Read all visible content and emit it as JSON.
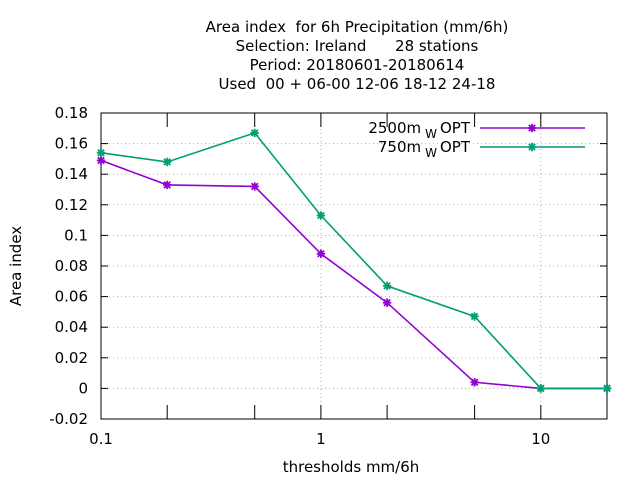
{
  "chart_data": {
    "type": "line",
    "title_lines": [
      "Area index  for 6h Precipitation (mm/6h)",
      "Selection: Ireland      28 stations",
      "Period: 20180601-20180614",
      "Used  00 + 06-00 12-06 18-12 24-18"
    ],
    "xlabel": "thresholds mm/6h",
    "ylabel": "Area index",
    "xscale": "log",
    "xlim": [
      0.1,
      20
    ],
    "ylim": [
      -0.02,
      0.18
    ],
    "xticks": [
      {
        "value": 0.1,
        "label": "0.1"
      },
      {
        "value": 1,
        "label": "1"
      },
      {
        "value": 10,
        "label": "10"
      }
    ],
    "x_minor_ticks": [
      0.2,
      0.5,
      2,
      5,
      20
    ],
    "yticks": [
      {
        "value": -0.02,
        "label": "-0.02"
      },
      {
        "value": 0,
        "label": "0"
      },
      {
        "value": 0.02,
        "label": "0.02"
      },
      {
        "value": 0.04,
        "label": "0.04"
      },
      {
        "value": 0.06,
        "label": "0.06"
      },
      {
        "value": 0.08,
        "label": "0.08"
      },
      {
        "value": 0.1,
        "label": "0.1"
      },
      {
        "value": 0.12,
        "label": "0.12"
      },
      {
        "value": 0.14,
        "label": "0.14"
      },
      {
        "value": 0.16,
        "label": "0.16"
      },
      {
        "value": 0.18,
        "label": "0.18"
      }
    ],
    "grid": true,
    "legend_position": "top-right",
    "x": [
      0.1,
      0.2,
      0.5,
      1,
      2,
      5,
      10,
      20
    ],
    "series": [
      {
        "name": "2500m",
        "name_sub": "W",
        "name_suffix": "OPT",
        "color": "#9400d3",
        "values": [
          0.149,
          0.133,
          0.132,
          0.088,
          0.056,
          0.004,
          0.0,
          0.0
        ]
      },
      {
        "name": "750m",
        "name_sub": "W",
        "name_suffix": "OPT",
        "color": "#009e73",
        "values": [
          0.154,
          0.148,
          0.167,
          0.113,
          0.067,
          0.047,
          0.0,
          0.0
        ]
      }
    ]
  }
}
